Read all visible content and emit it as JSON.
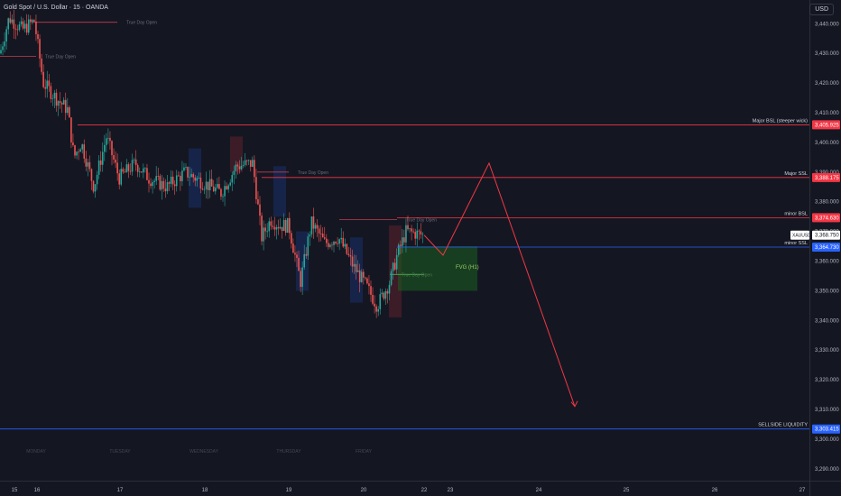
{
  "header": {
    "title": "Gold Spot / U.S. Dollar · 15 · OANDA",
    "currency": "USD"
  },
  "chart_data": {
    "type": "candlestick",
    "symbol": "XAUUSD",
    "ylim": [
      3286,
      3448
    ],
    "yticks": [
      3290,
      3300,
      3310,
      3320,
      3330,
      3340,
      3350,
      3360,
      3370,
      3380,
      3390,
      3400,
      3410,
      3420,
      3430,
      3440
    ],
    "xticks": [
      "15",
      "16",
      "17",
      "18",
      "19",
      "20",
      "22",
      "23",
      "24",
      "25",
      "26",
      "27"
    ],
    "day_labels": [
      "MONDAY",
      "TUESDAY",
      "WEDNESDAY",
      "THURSDAY",
      "FRIDAY"
    ],
    "levels": [
      {
        "label": "Major BSL (steeper wick)",
        "price": 3405.925,
        "price_label": "3,405.925",
        "color": "#f23645"
      },
      {
        "label": "Major SSL",
        "price": 3388.175,
        "price_label": "3,388.175",
        "color": "#f23645"
      },
      {
        "label": "minor BSL",
        "price": 3374.63,
        "price_label": "3,374.630",
        "color": "#f23645"
      },
      {
        "label": "minor SSL",
        "price": 3364.73,
        "price_label": "3,364.730",
        "color": "#2962ff"
      },
      {
        "label": "SELLSIDE LIQUIDITY",
        "price": 3303.415,
        "price_label": "3,303.415",
        "color": "#2962ff"
      }
    ],
    "current_price": {
      "symbol": "XAUUSD",
      "price": 3368.75,
      "label": "3,368.750"
    },
    "annotations": {
      "true_day_open": "True Day Open",
      "fvg": "FVG (H1)"
    },
    "true_day_opens": [
      3440.5,
      3429.0,
      3390.0,
      3374.0,
      3355.5
    ],
    "fvg_zone": {
      "top": 3365,
      "bottom": 3350
    },
    "projection": [
      3368.75,
      3362,
      3393,
      3311
    ],
    "colors": {
      "up": "#26a69a",
      "down": "#ef5350",
      "bg": "#141722"
    }
  }
}
